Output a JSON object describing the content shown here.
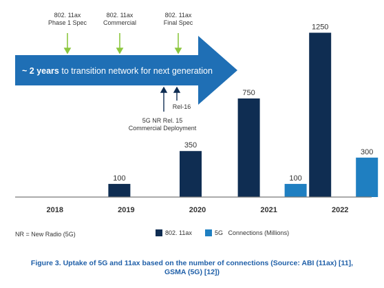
{
  "chart_data": {
    "type": "bar",
    "categories": [
      "2018",
      "2019",
      "2020",
      "2021",
      "2022"
    ],
    "series": [
      {
        "name": "802. 11ax",
        "values": [
          null,
          100,
          350,
          750,
          1250
        ],
        "color": "#0f2d52"
      },
      {
        "name": "5G",
        "values": [
          null,
          null,
          null,
          100,
          300
        ],
        "color": "#1f7fc1"
      }
    ],
    "ylim": [
      0,
      1300
    ],
    "legend_suffix": "Connections (Millions)",
    "legend_position": "bottom",
    "grid": false
  },
  "arrow": {
    "text_bold": "~ 2 years",
    "text_rest": " to transition network for next generation",
    "color": "#1f6fb5"
  },
  "annotations": {
    "phase1": [
      "802. 11ax",
      "Phase 1 Spec"
    ],
    "commercial": [
      "802. 11ax",
      "Commercial"
    ],
    "final": [
      "802. 11ax",
      "Final Spec"
    ],
    "rel16": "Rel-16",
    "nr15": [
      "5G NR Rel. 15",
      "Commercial Deployment"
    ]
  },
  "footnote": "NR = New Radio (5G)",
  "caption": [
    "Figure 3.  Uptake of 5G and 11ax based on the number of connections (Source: ABI (11ax) [11],",
    "GSMA (5G) [12])"
  ]
}
